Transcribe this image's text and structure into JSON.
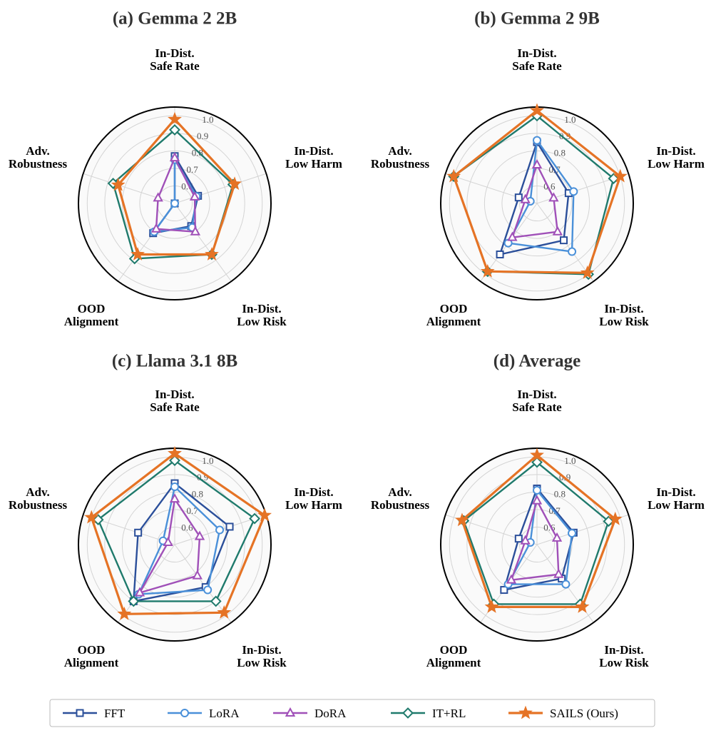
{
  "chart_data": {
    "type": "radar",
    "shared": {
      "axes": [
        "In-Dist.\nSafe Rate",
        "In-Dist.\nLow Harm",
        "In-Dist.\nLow Risk",
        "OOD\nAlignment",
        "Adv.\nRobustness"
      ],
      "rlim": [
        0.5,
        1.05
      ],
      "rticks": [
        0.6,
        0.7,
        0.8,
        0.9,
        1.0
      ],
      "rtick_labels": [
        "0.6",
        "0.7",
        "0.8",
        "0.9",
        "1.0"
      ],
      "grid": true,
      "legend_position": "bottom-center",
      "colors": {
        "FFT": "#2b4f9a",
        "LoRA": "#4a90d9",
        "DoRA": "#a050b8",
        "IT+RL": "#1f7a6c",
        "SAILS (Ours)": "#e57325"
      },
      "markers": {
        "FFT": "square",
        "LoRA": "circle",
        "DoRA": "triangle",
        "IT+RL": "diamond",
        "SAILS (Ours)": "star"
      }
    },
    "legend": [
      "FFT",
      "LoRA",
      "DoRA",
      "IT+RL",
      "SAILS (Ours)"
    ],
    "panels": [
      {
        "title": "(a) Gemma 2 2B",
        "series": [
          {
            "name": "FFT",
            "values": [
              0.77,
              0.64,
              0.66,
              0.71,
              0.5
            ]
          },
          {
            "name": "LoRA",
            "values": [
              0.75,
              0.63,
              0.67,
              0.7,
              0.5
            ]
          },
          {
            "name": "DoRA",
            "values": [
              0.76,
              0.62,
              0.7,
              0.68,
              0.6
            ]
          },
          {
            "name": "IT+RL",
            "values": [
              0.92,
              0.85,
              0.86,
              0.89,
              0.87
            ]
          },
          {
            "name": "SAILS (Ours)",
            "values": [
              0.98,
              0.86,
              0.86,
              0.86,
              0.84
            ]
          }
        ]
      },
      {
        "title": "(b) Gemma 2 9B",
        "series": [
          {
            "name": "FFT",
            "values": [
              0.85,
              0.69,
              0.76,
              0.86,
              0.61
            ]
          },
          {
            "name": "LoRA",
            "values": [
              0.86,
              0.72,
              0.84,
              0.78,
              0.54
            ]
          },
          {
            "name": "DoRA",
            "values": [
              0.72,
              0.6,
              0.7,
              0.74,
              0.57
            ]
          },
          {
            "name": "IT+RL",
            "values": [
              1.0,
              0.96,
              1.0,
              0.98,
              1.0
            ]
          },
          {
            "name": "SAILS (Ours)",
            "values": [
              1.03,
              1.0,
              0.99,
              0.98,
              1.0
            ]
          }
        ]
      },
      {
        "title": "(c) Llama 3.1 8B",
        "series": [
          {
            "name": "FFT",
            "values": [
              0.85,
              0.83,
              0.8,
              0.9,
              0.72
            ]
          },
          {
            "name": "LoRA",
            "values": [
              0.83,
              0.77,
              0.82,
              0.85,
              0.57
            ]
          },
          {
            "name": "DoRA",
            "values": [
              0.76,
              0.65,
              0.72,
              0.84,
              0.54
            ]
          },
          {
            "name": "IT+RL",
            "values": [
              0.98,
              0.98,
              0.9,
              0.9,
              0.96
            ]
          },
          {
            "name": "SAILS (Ours)",
            "values": [
              1.02,
              1.04,
              0.98,
              0.99,
              1.0
            ]
          }
        ]
      },
      {
        "title": "(d) Average",
        "series": [
          {
            "name": "FFT",
            "values": [
              0.82,
              0.72,
              0.74,
              0.82,
              0.61
            ]
          },
          {
            "name": "LoRA",
            "values": [
              0.81,
              0.71,
              0.78,
              0.78,
              0.54
            ]
          },
          {
            "name": "DoRA",
            "values": [
              0.75,
              0.62,
              0.71,
              0.75,
              0.57
            ]
          },
          {
            "name": "IT+RL",
            "values": [
              0.97,
              0.93,
              0.92,
              0.92,
              0.94
            ]
          },
          {
            "name": "SAILS (Ours)",
            "values": [
              1.01,
              0.97,
              0.94,
              0.94,
              0.95
            ]
          }
        ]
      }
    ]
  }
}
